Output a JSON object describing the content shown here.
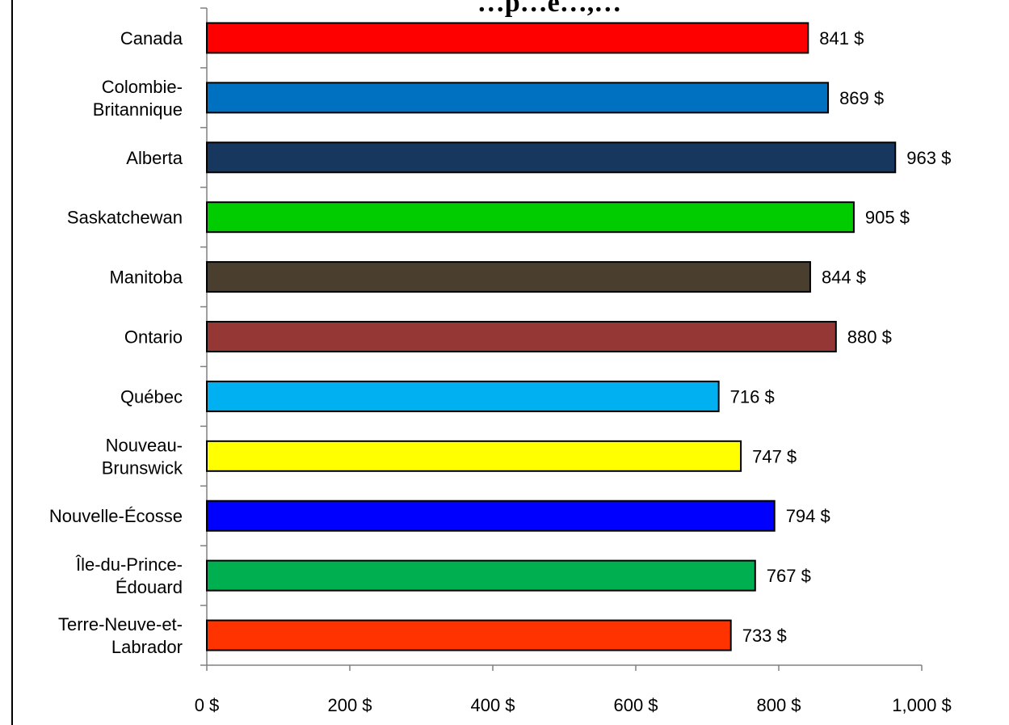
{
  "chart_data": {
    "type": "bar",
    "orientation": "horizontal",
    "title": "…p…e…,…",
    "categories": [
      "Canada",
      "Colombie-\nBritannique",
      "Alberta",
      "Saskatchewan",
      "Manitoba",
      "Ontario",
      "Québec",
      "Nouveau-\nBrunswick",
      "Nouvelle-Écosse",
      "Île-du-Prince-\nÉdouard",
      "Terre-Neuve-et-\nLabrador"
    ],
    "values": [
      841,
      869,
      963,
      905,
      844,
      880,
      716,
      747,
      794,
      767,
      733
    ],
    "value_labels": [
      "841 $",
      "869 $",
      "963 $",
      "905 $",
      "844 $",
      "880 $",
      "716 $",
      "747 $",
      "794 $",
      "767 $",
      "733 $"
    ],
    "bar_colors": [
      "#ff0000",
      "#0070c0",
      "#17375e",
      "#00cc00",
      "#4a3f2e",
      "#953735",
      "#00b0f0",
      "#ffff00",
      "#0000ff",
      "#00b050",
      "#ff3300"
    ],
    "xlim": [
      0,
      1000
    ],
    "xticks": [
      0,
      200,
      400,
      600,
      800,
      1000
    ],
    "xtick_labels": [
      "0 $",
      "200 $",
      "400 $",
      "600 $",
      "800 $",
      "1,000 $"
    ],
    "xlabel": "",
    "ylabel": "",
    "grid": false,
    "legend": "none"
  }
}
